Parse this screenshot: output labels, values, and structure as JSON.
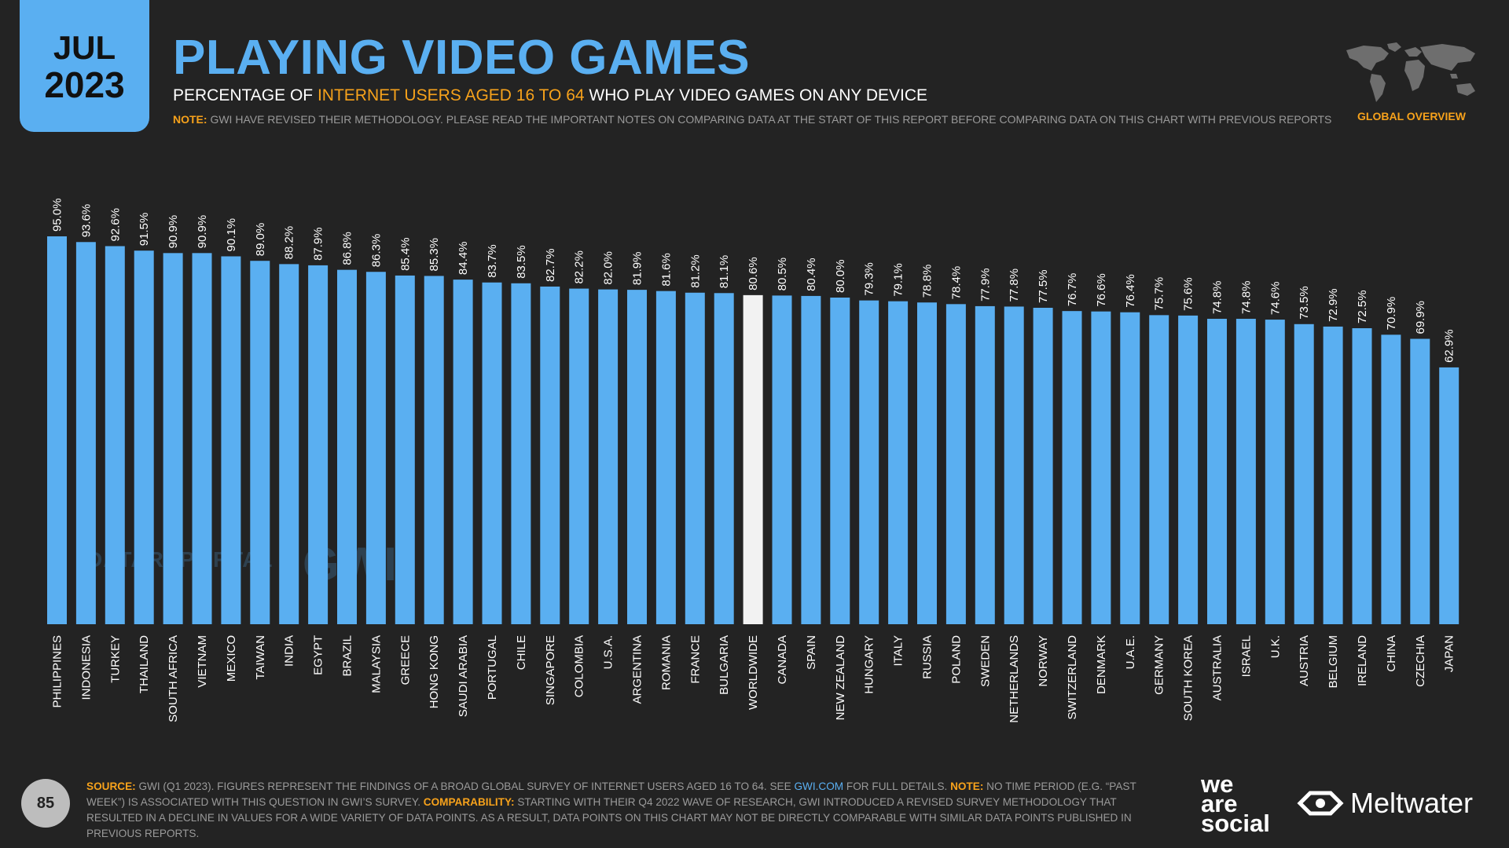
{
  "badge": {
    "month": "JUL",
    "year": "2023"
  },
  "title": "PLAYING VIDEO GAMES",
  "subtitle": {
    "pre": "PERCENTAGE OF ",
    "highlight": "INTERNET USERS AGED 16 TO 64",
    "post": " WHO PLAY VIDEO GAMES ON ANY DEVICE"
  },
  "note": {
    "label": "NOTE:",
    "text": " GWI HAVE REVISED THEIR METHODOLOGY. PLEASE READ THE IMPORTANT NOTES ON COMPARING DATA AT THE START OF THIS REPORT BEFORE COMPARING DATA ON THIS CHART WITH PREVIOUS REPORTS"
  },
  "global_overview": "GLOBAL OVERVIEW",
  "watermarks": {
    "datareportal": "DATAREPORTAL",
    "gwi": "GWI."
  },
  "page_number": "85",
  "source": {
    "label1": "SOURCE:",
    "text1": " GWI (Q1 2023). FIGURES REPRESENT THE FINDINGS OF A BROAD GLOBAL SURVEY OF INTERNET USERS AGED 16 TO 64. SEE ",
    "link": "GWI.COM",
    "text2": " FOR FULL DETAILS. ",
    "label2": "NOTE:",
    "text3": " NO TIME PERIOD (E.G. “PAST WEEK”) IS ASSOCIATED WITH THIS QUESTION IN GWI’S SURVEY. ",
    "label3": "COMPARABILITY:",
    "text4": " STARTING WITH THEIR Q4 2022 WAVE OF RESEARCH, GWI INTRODUCED A REVISED SURVEY METHODOLOGY THAT RESULTED IN A DECLINE IN VALUES FOR A WIDE VARIETY OF DATA POINTS. AS A RESULT, DATA POINTS ON THIS CHART MAY NOT BE DIRECTLY COMPARABLE WITH SIMILAR DATA POINTS PUBLISHED IN PREVIOUS REPORTS."
  },
  "brands": {
    "we": "we",
    "are": "are",
    "social": "social",
    "meltwater": "Meltwater"
  },
  "colors": {
    "bar": "#5aaff1",
    "highlight_bar": "#f2f2f2",
    "background": "#232323",
    "accent": "#f7a21b"
  },
  "chart_data": {
    "type": "bar",
    "orientation": "vertical",
    "highlight_category": "WORLDWIDE",
    "ylim": [
      0,
      100
    ],
    "categories": [
      "PHILIPPINES",
      "INDONESIA",
      "TURKEY",
      "THAILAND",
      "SOUTH AFRICA",
      "VIETNAM",
      "MEXICO",
      "TAIWAN",
      "INDIA",
      "EGYPT",
      "BRAZIL",
      "MALAYSIA",
      "GREECE",
      "HONG KONG",
      "SAUDI ARABIA",
      "PORTUGAL",
      "CHILE",
      "SINGAPORE",
      "COLOMBIA",
      "U.S.A.",
      "ARGENTINA",
      "ROMANIA",
      "FRANCE",
      "BULGARIA",
      "WORLDWIDE",
      "CANADA",
      "SPAIN",
      "NEW ZEALAND",
      "HUNGARY",
      "ITALY",
      "RUSSIA",
      "POLAND",
      "SWEDEN",
      "NETHERLANDS",
      "NORWAY",
      "SWITZERLAND",
      "DENMARK",
      "U.A.E.",
      "GERMANY",
      "SOUTH KOREA",
      "AUSTRALIA",
      "ISRAEL",
      "U.K.",
      "AUSTRIA",
      "BELGIUM",
      "IRELAND",
      "CHINA",
      "CZECHIA",
      "JAPAN"
    ],
    "values": [
      95.0,
      93.6,
      92.6,
      91.5,
      90.9,
      90.9,
      90.1,
      89.0,
      88.2,
      87.9,
      86.8,
      86.3,
      85.4,
      85.3,
      84.4,
      83.7,
      83.5,
      82.7,
      82.2,
      82.0,
      81.9,
      81.6,
      81.2,
      81.1,
      80.6,
      80.5,
      80.4,
      80.0,
      79.3,
      79.1,
      78.8,
      78.4,
      77.9,
      77.8,
      77.5,
      76.7,
      76.6,
      76.4,
      75.7,
      75.6,
      74.8,
      74.8,
      74.6,
      73.5,
      72.9,
      72.5,
      70.9,
      69.9,
      62.9
    ],
    "value_labels": [
      "95.0%",
      "93.6%",
      "92.6%",
      "91.5%",
      "90.9%",
      "90.9%",
      "90.1%",
      "89.0%",
      "88.2%",
      "87.9%",
      "86.8%",
      "86.3%",
      "85.4%",
      "85.3%",
      "84.4%",
      "83.7%",
      "83.5%",
      "82.7%",
      "82.2%",
      "82.0%",
      "81.9%",
      "81.6%",
      "81.2%",
      "81.1%",
      "80.6%",
      "80.5%",
      "80.4%",
      "80.0%",
      "79.3%",
      "79.1%",
      "78.8%",
      "78.4%",
      "77.9%",
      "77.8%",
      "77.5%",
      "76.7%",
      "76.6%",
      "76.4%",
      "75.7%",
      "75.6%",
      "74.8%",
      "74.8%",
      "74.6%",
      "73.5%",
      "72.9%",
      "72.5%",
      "70.9%",
      "69.9%",
      "62.9%"
    ]
  }
}
